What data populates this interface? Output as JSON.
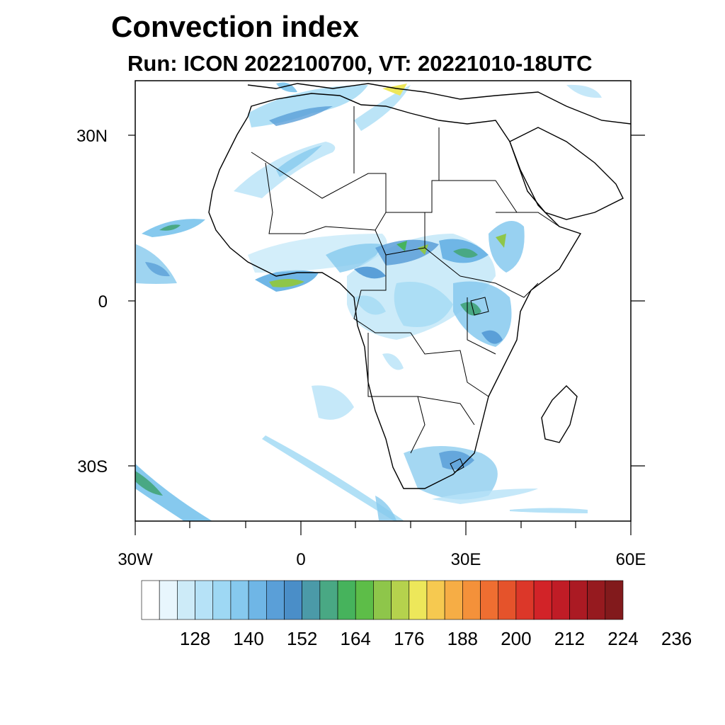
{
  "title": "Convection index",
  "subtitle": "Run: ICON 2022100700,  VT: 20221010-18UTC",
  "map": {
    "lon_range": [
      -30,
      60
    ],
    "lat_range": [
      -40,
      40
    ],
    "lat_ticks": [
      {
        "label": "30N",
        "lat": 30
      },
      {
        "label": "0",
        "lat": 0
      },
      {
        "label": "30S",
        "lat": -30
      }
    ],
    "lon_ticks": [
      {
        "label": "30W",
        "lon": -30
      },
      {
        "label": "0",
        "lon": 0
      },
      {
        "label": "30E",
        "lon": 30
      },
      {
        "label": "60E",
        "lon": 60
      }
    ]
  },
  "colorbar": {
    "colors": [
      "#ffffff",
      "#e8f6fd",
      "#cdebf8",
      "#b6e2f7",
      "#9ed8f4",
      "#86c9ee",
      "#6fb6e6",
      "#5a9fd8",
      "#4a8ec8",
      "#4b9aa8",
      "#49a884",
      "#46b35c",
      "#5dbd48",
      "#8ec64a",
      "#b5d24d",
      "#ede75a",
      "#f6c950",
      "#f6ad45",
      "#f4913a",
      "#ef6e31",
      "#e5532b",
      "#dc3729",
      "#d22328",
      "#c01c26",
      "#ab1a23",
      "#961a1f",
      "#821a1c"
    ],
    "labels": [
      "128",
      "140",
      "152",
      "164",
      "176",
      "188",
      "200",
      "212",
      "224",
      "236"
    ]
  }
}
